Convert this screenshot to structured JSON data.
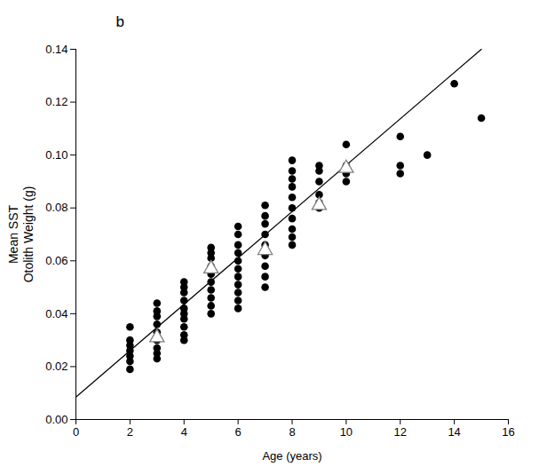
{
  "chart_data": {
    "type": "scatter",
    "panel": "b",
    "xlabel": "Age (years)",
    "ylabel": "Mean SST\nOtolith Weight (g)",
    "xlim": [
      0,
      16
    ],
    "xticks": [
      0,
      2,
      4,
      6,
      8,
      10,
      12,
      14,
      16
    ],
    "ylim": [
      0,
      0.14
    ],
    "yticks": [
      {
        "value": 0,
        "label": "0.00"
      },
      0.02,
      0.04,
      0.06,
      0.08,
      {
        "value": 0.1,
        "label": "0.10"
      },
      0.12,
      0.14
    ],
    "grid": false,
    "series": [
      {
        "type": "line",
        "color": "#000000",
        "line_style": "solid",
        "x": [
          0,
          15
        ],
        "y": [
          0.0085,
          0.14
        ]
      },
      {
        "type": "scatter",
        "color": "#000000",
        "marker": "circle",
        "x": [
          2,
          2,
          2,
          2,
          2,
          2,
          2,
          3,
          3,
          3,
          3,
          3,
          3,
          3,
          3,
          3,
          4,
          4,
          4,
          4,
          4,
          4,
          4,
          4,
          4,
          4,
          5,
          5,
          5,
          5,
          5,
          5,
          5,
          5,
          5,
          5,
          6,
          6,
          6,
          6,
          6,
          6,
          6,
          6,
          6,
          6,
          6,
          7,
          7,
          7,
          7,
          7,
          7,
          7,
          7,
          7,
          8,
          8,
          8,
          8,
          8,
          8,
          8,
          8,
          8,
          8,
          9,
          9,
          9,
          9,
          9,
          9,
          10,
          10,
          10,
          10,
          12,
          12,
          12,
          13,
          14,
          15
        ],
        "y": [
          0.019,
          0.022,
          0.024,
          0.026,
          0.028,
          0.03,
          0.035,
          0.023,
          0.025,
          0.027,
          0.03,
          0.033,
          0.036,
          0.039,
          0.041,
          0.044,
          0.03,
          0.032,
          0.035,
          0.038,
          0.04,
          0.042,
          0.045,
          0.048,
          0.05,
          0.052,
          0.04,
          0.043,
          0.046,
          0.049,
          0.052,
          0.055,
          0.058,
          0.061,
          0.063,
          0.065,
          0.042,
          0.045,
          0.048,
          0.051,
          0.054,
          0.057,
          0.06,
          0.063,
          0.066,
          0.07,
          0.073,
          0.05,
          0.054,
          0.058,
          0.062,
          0.066,
          0.07,
          0.074,
          0.077,
          0.081,
          0.066,
          0.069,
          0.072,
          0.076,
          0.08,
          0.084,
          0.088,
          0.091,
          0.094,
          0.098,
          0.08,
          0.082,
          0.085,
          0.09,
          0.094,
          0.096,
          0.09,
          0.093,
          0.096,
          0.104,
          0.093,
          0.096,
          0.107,
          0.1,
          0.127,
          0.114
        ]
      },
      {
        "type": "scatter",
        "color": "#808080",
        "marker": "triangle",
        "x": [
          3,
          5,
          7,
          9,
          10
        ],
        "y": [
          0.031,
          0.057,
          0.064,
          0.081,
          0.095
        ]
      }
    ]
  }
}
